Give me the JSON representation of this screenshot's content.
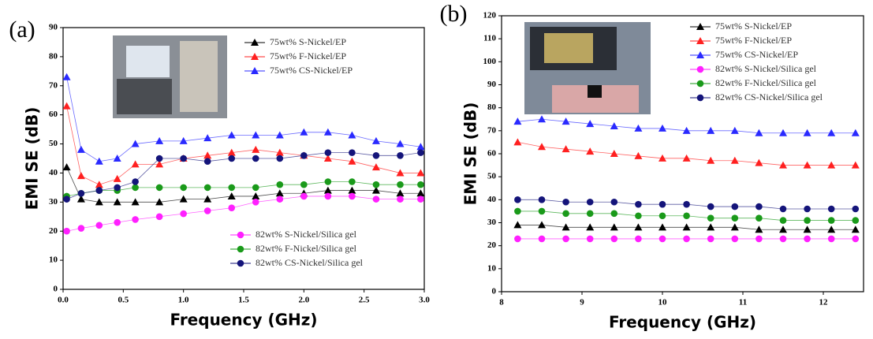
{
  "chart_data": [
    {
      "type": "line",
      "panel_label": "(a)",
      "xlabel": "Frequency (GHz)",
      "ylabel": "EMI SE (dB)",
      "xlim": [
        0,
        3
      ],
      "xticks": [
        {
          "value": 0,
          "label": "0.0"
        },
        0.5,
        {
          "value": 1,
          "label": "1.0"
        },
        1.5,
        {
          "value": 2,
          "label": "2.0"
        },
        2.5,
        {
          "value": 3,
          "label": "3.0"
        }
      ],
      "ylim": [
        0,
        90
      ],
      "yticks": [
        0,
        10,
        20,
        30,
        40,
        50,
        60,
        70,
        80,
        90
      ],
      "x": [
        0.03,
        0.15,
        0.3,
        0.45,
        0.6,
        0.8,
        1.0,
        1.2,
        1.4,
        1.6,
        1.8,
        2.0,
        2.2,
        2.4,
        2.6,
        2.8,
        2.97
      ],
      "series": [
        {
          "name": "75wt% S-Nickel/EP",
          "color": "#000000",
          "marker": "triangle",
          "legend": "upper right",
          "values": [
            42,
            31,
            30,
            30,
            30,
            30,
            31,
            31,
            32,
            32,
            33,
            33,
            34,
            34,
            34,
            33,
            33
          ]
        },
        {
          "name": "75wt% F-Nickel/EP",
          "color": "#ff2020",
          "marker": "triangle",
          "legend": "upper right",
          "values": [
            63,
            39,
            36,
            38,
            43,
            43,
            45,
            46,
            47,
            48,
            47,
            46,
            45,
            44,
            42,
            40,
            40
          ]
        },
        {
          "name": "75wt% CS-Nickel/EP",
          "color": "#2a2aff",
          "marker": "triangle",
          "legend": "upper right",
          "values": [
            73,
            48,
            44,
            45,
            50,
            51,
            51,
            52,
            53,
            53,
            53,
            54,
            54,
            53,
            51,
            50,
            49
          ]
        },
        {
          "name": "82wt% S-Nickel/Silica gel",
          "color": "#ff20ff",
          "marker": "circle",
          "legend": "lower right",
          "values": [
            20,
            21,
            22,
            23,
            24,
            25,
            26,
            27,
            28,
            30,
            31,
            32,
            32,
            32,
            31,
            31,
            31
          ]
        },
        {
          "name": "82wt% F-Nickel/Silica gel",
          "color": "#1a9a1a",
          "marker": "circle",
          "legend": "lower right",
          "values": [
            32,
            33,
            34,
            34,
            35,
            35,
            35,
            35,
            35,
            35,
            36,
            36,
            37,
            37,
            36,
            36,
            36
          ]
        },
        {
          "name": "82wt% CS-Nickel/Silica gel",
          "color": "#14147a",
          "marker": "circle",
          "legend": "lower right",
          "values": [
            31,
            33,
            34,
            35,
            37,
            45,
            45,
            44,
            45,
            45,
            45,
            46,
            47,
            47,
            46,
            46,
            47
          ]
        }
      ]
    },
    {
      "type": "line",
      "panel_label": "(b)",
      "xlabel": "Frequency (GHz)",
      "ylabel": "EMI SE (dB)",
      "xlim": [
        8,
        12.5
      ],
      "xticks": [
        8,
        9,
        10,
        11,
        12
      ],
      "ylim": [
        0,
        120
      ],
      "yticks": [
        0,
        10,
        20,
        30,
        40,
        50,
        60,
        70,
        80,
        90,
        100,
        110,
        120
      ],
      "x": [
        8.2,
        8.5,
        8.8,
        9.1,
        9.4,
        9.7,
        10.0,
        10.3,
        10.6,
        10.9,
        11.2,
        11.5,
        11.8,
        12.1,
        12.4
      ],
      "series": [
        {
          "name": "75wt% S-Nickel/EP",
          "color": "#000000",
          "marker": "triangle",
          "legend": "upper right",
          "values": [
            29,
            29,
            28,
            28,
            28,
            28,
            28,
            28,
            28,
            28,
            27,
            27,
            27,
            27,
            27
          ]
        },
        {
          "name": "75wt% F-Nickel/EP",
          "color": "#ff2020",
          "marker": "triangle",
          "legend": "upper right",
          "values": [
            65,
            63,
            62,
            61,
            60,
            59,
            58,
            58,
            57,
            57,
            56,
            55,
            55,
            55,
            55
          ]
        },
        {
          "name": "75wt% CS-Nickel/EP",
          "color": "#2a2aff",
          "marker": "triangle",
          "legend": "upper right",
          "values": [
            74,
            75,
            74,
            73,
            72,
            71,
            71,
            70,
            70,
            70,
            69,
            69,
            69,
            69,
            69
          ]
        },
        {
          "name": "82wt% S-Nickel/Silica gel",
          "color": "#ff20ff",
          "marker": "circle",
          "legend": "upper right",
          "values": [
            23,
            23,
            23,
            23,
            23,
            23,
            23,
            23,
            23,
            23,
            23,
            23,
            23,
            23,
            23
          ]
        },
        {
          "name": "82wt% F-Nickel/Silica gel",
          "color": "#1a9a1a",
          "marker": "circle",
          "legend": "upper right",
          "values": [
            35,
            35,
            34,
            34,
            34,
            33,
            33,
            33,
            32,
            32,
            32,
            31,
            31,
            31,
            31
          ]
        },
        {
          "name": "82wt% CS-Nickel/Silica gel",
          "color": "#14147a",
          "marker": "circle",
          "legend": "upper right",
          "values": [
            40,
            40,
            39,
            39,
            39,
            38,
            38,
            38,
            37,
            37,
            37,
            36,
            36,
            36,
            36
          ]
        }
      ]
    }
  ]
}
